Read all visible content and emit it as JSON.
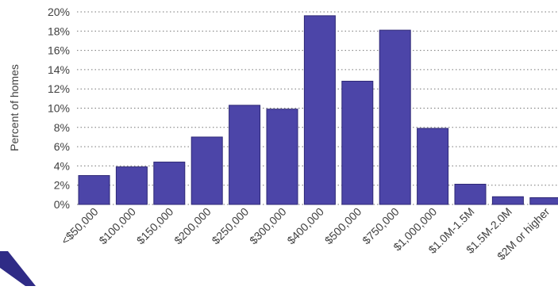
{
  "chart_data": {
    "type": "bar",
    "title": "",
    "xlabel": "",
    "ylabel": "Percent of homes",
    "categories": [
      "<$50,000",
      "$100,000",
      "$150,000",
      "$200,000",
      "$250,000",
      "$300,000",
      "$400,000",
      "$500,000",
      "$750,000",
      "$1,000,000",
      "$1.0M-1.5M",
      "$1.5M-2.0M",
      "$2M or higher"
    ],
    "values": [
      3.0,
      3.9,
      4.4,
      7.0,
      10.3,
      9.9,
      19.6,
      12.8,
      18.1,
      7.9,
      2.1,
      0.8,
      0.7
    ],
    "ylim": [
      0,
      20
    ],
    "y_ticks": [
      0,
      2,
      4,
      6,
      8,
      10,
      12,
      14,
      16,
      18,
      20
    ],
    "y_tick_labels": [
      "0%",
      "2%",
      "4%",
      "6%",
      "8%",
      "10%",
      "12%",
      "14%",
      "16%",
      "18%",
      "20%"
    ],
    "grid": true,
    "colors": {
      "bar_fill": "#4c45a8",
      "bar_stroke": "#2e2876",
      "grid": "#777777",
      "text": "#404040",
      "decor_stripe": "#2f2b86"
    }
  }
}
